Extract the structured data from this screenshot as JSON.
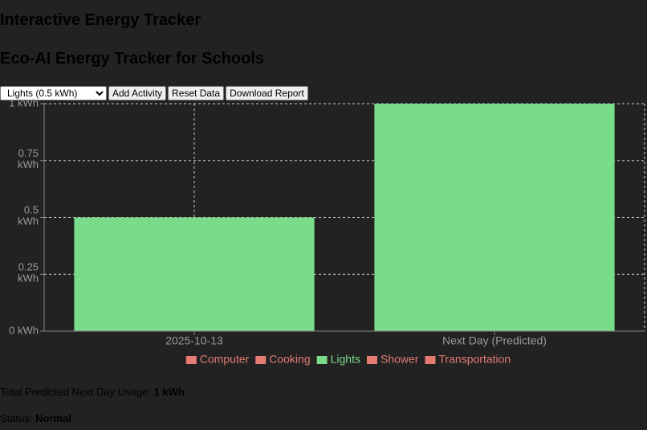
{
  "header": {
    "title": "Interactive Energy Tracker",
    "subtitle": "Eco-AI Energy Tracker for Schools"
  },
  "controls": {
    "select": "Lights (0.5 kWh)",
    "buttons": [
      "Add Activity",
      "Reset Data",
      "Download Report"
    ]
  },
  "chart_data": {
    "type": "bar",
    "stacked": true,
    "categories": [
      "2025-10-13",
      "Next Day (Predicted)"
    ],
    "series": [
      {
        "name": "Computer",
        "color": "#e57c73",
        "values": [
          0,
          0
        ]
      },
      {
        "name": "Cooking",
        "color": "#e57c73",
        "values": [
          0,
          0
        ]
      },
      {
        "name": "Lights",
        "color": "#79dc8a",
        "values": [
          0.5,
          1
        ]
      },
      {
        "name": "Shower",
        "color": "#e57c73",
        "values": [
          0,
          0
        ]
      },
      {
        "name": "Transportation",
        "color": "#e57c73",
        "values": [
          0,
          0
        ]
      }
    ],
    "ylim": [
      0,
      1
    ],
    "yticks": [
      {
        "value": 0,
        "label": "0 kWh"
      },
      {
        "value": 0.25,
        "label": "0.25 kWh"
      },
      {
        "value": 0.5,
        "label": "0.5 kWh"
      },
      {
        "value": 0.75,
        "label": "0.75 kWh"
      },
      {
        "value": 1,
        "label": "1 kWh"
      }
    ],
    "grid": true,
    "legend": "bottom"
  },
  "summary": {
    "usage_label": "Total Predicted Next Day Usage:",
    "usage_value": "1 kWh",
    "status_label": "Status:",
    "status_value": "Normal"
  }
}
